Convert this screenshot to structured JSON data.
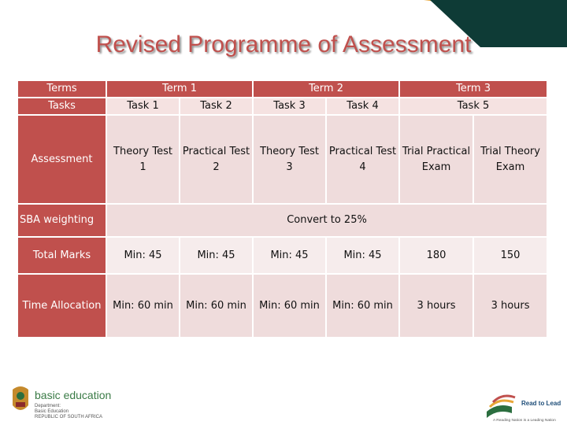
{
  "title": "Revised Programme of Assessment",
  "table": {
    "row_terms": {
      "label": "Terms",
      "term1": "Term 1",
      "term2": "Term 2",
      "term3": "Term 3"
    },
    "row_tasks": {
      "label": "Tasks",
      "task1": "Task 1",
      "task2": "Task 2",
      "task3": "Task 3",
      "task4": "Task 4",
      "task5": "Task 5"
    },
    "row_assessment": {
      "label": "Assessment",
      "c1": "Theory Test 1",
      "c2": "Practical Test 2",
      "c3": "Theory Test 3",
      "c4": "Practical Test 4",
      "c5": "Trial Practical Exam",
      "c6": "Trial Theory Exam"
    },
    "row_sba": {
      "label": "SBA weighting",
      "value": "Convert to 25%"
    },
    "row_marks": {
      "label": "Total Marks",
      "c1": "Min: 45",
      "c2": "Min: 45",
      "c3": "Min: 45",
      "c4": "Min: 45",
      "c5": "180",
      "c6": "150"
    },
    "row_time": {
      "label": "Time Allocation",
      "c1": "Min: 60 min",
      "c2": "Min: 60 min",
      "c3": "Min: 60 min",
      "c4": "Min: 60 min",
      "c5": "3 hours",
      "c6": "3 hours"
    }
  },
  "footer": {
    "logo_line1": "basic education",
    "logo_line2": "Department:",
    "logo_line3": "Basic Education",
    "logo_line4": "REPUBLIC OF SOUTH AFRICA",
    "rtl_title": "Read to Lead",
    "rtl_tagline": "A Reading Nation is a Leading Nation"
  },
  "colors": {
    "header_red": "#c0504d",
    "cell_pink": "#efdcdc",
    "cell_light": "#f6ecec",
    "corner_green": "#0e3b36",
    "corner_orange": "#e8a637"
  }
}
